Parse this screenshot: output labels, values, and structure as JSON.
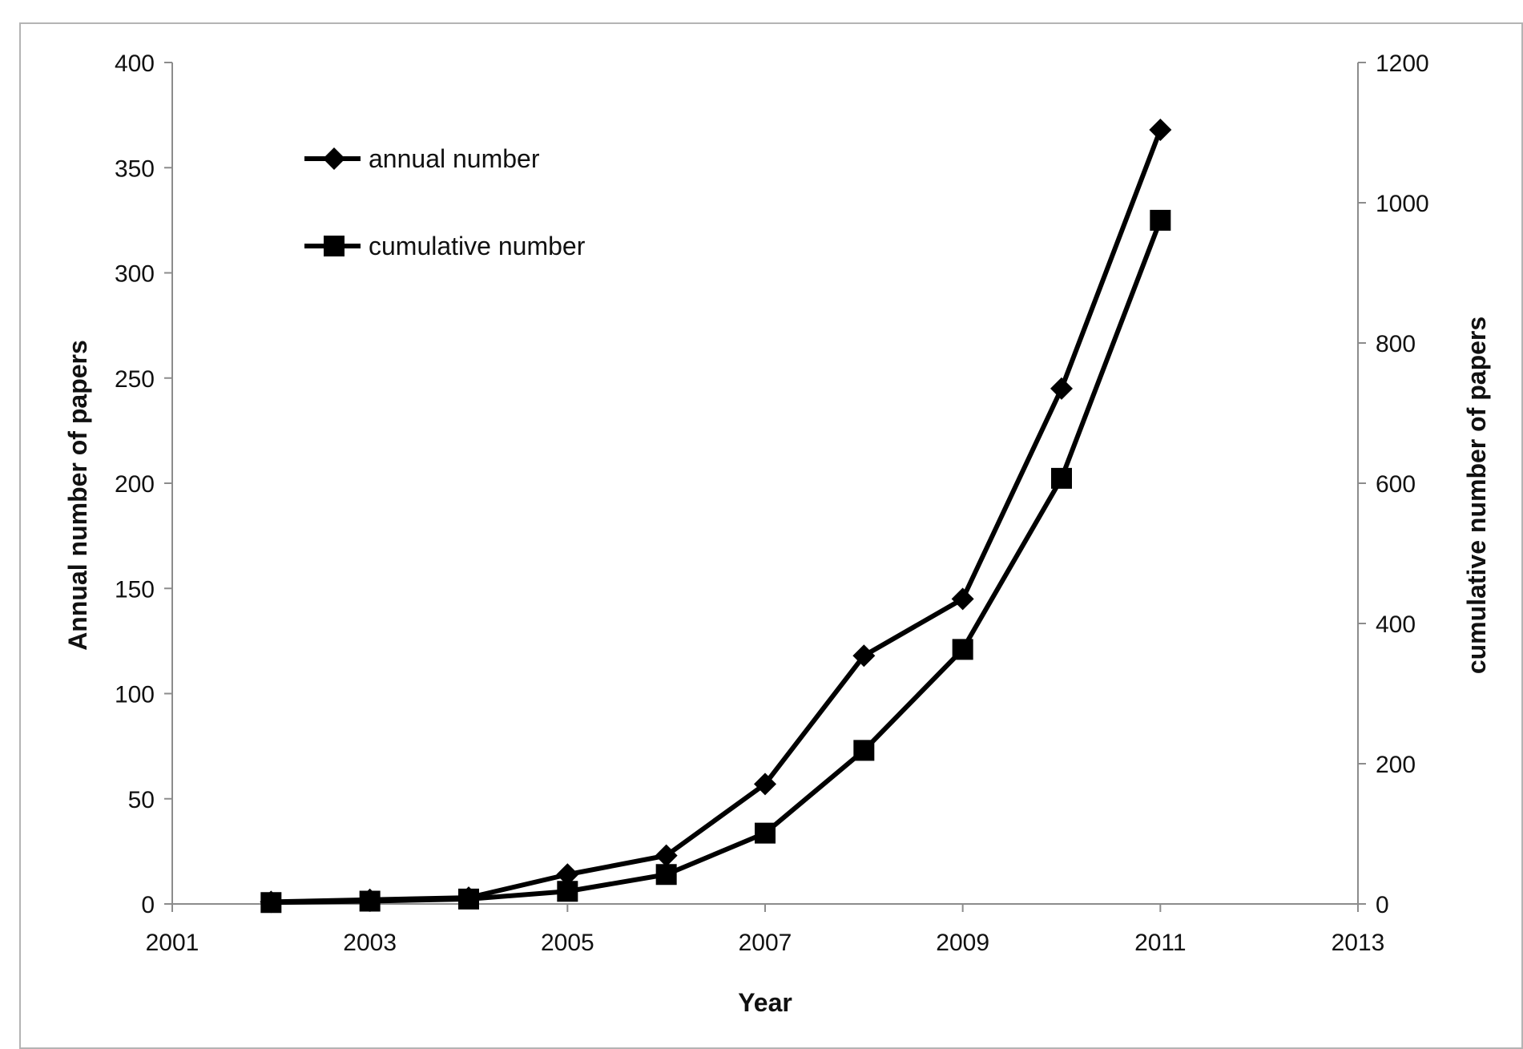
{
  "chart_data": {
    "type": "line",
    "title": "",
    "xlabel": "Year",
    "ylabel_left": "Annual number of papers",
    "ylabel_right": "cumulative number of papers",
    "xlim": [
      2001,
      2013
    ],
    "xticks": [
      2001,
      2003,
      2005,
      2007,
      2009,
      2011,
      2013
    ],
    "ylim_left": [
      0,
      400
    ],
    "yticks_left": [
      0,
      50,
      100,
      150,
      200,
      250,
      300,
      350,
      400
    ],
    "ylim_right": [
      0,
      1200
    ],
    "yticks_right": [
      0,
      200,
      400,
      600,
      800,
      1000,
      1200
    ],
    "grid": false,
    "legend_position": "top-left",
    "line_color": "#000000",
    "series": [
      {
        "name": "annual number",
        "axis": "left",
        "marker": "diamond",
        "x": [
          2002,
          2003,
          2004,
          2005,
          2006,
          2007,
          2008,
          2009,
          2010,
          2011
        ],
        "y": [
          1,
          2,
          3,
          14,
          23,
          57,
          118,
          145,
          245,
          368
        ]
      },
      {
        "name": "cumulative number",
        "axis": "right",
        "marker": "square",
        "x": [
          2002,
          2003,
          2004,
          2005,
          2006,
          2007,
          2008,
          2009,
          2010,
          2011
        ],
        "y": [
          2,
          4,
          7,
          18,
          42,
          101,
          219,
          363,
          607,
          975
        ]
      }
    ]
  }
}
